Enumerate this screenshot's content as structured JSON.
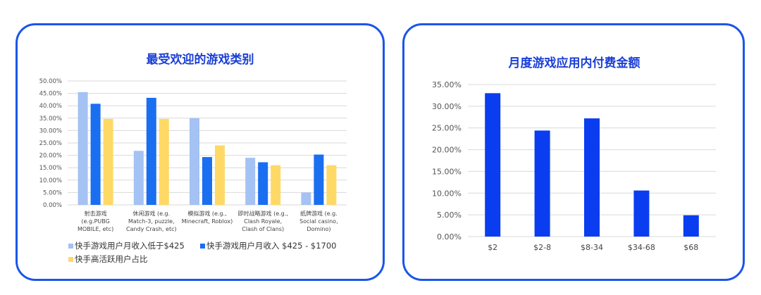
{
  "colors": {
    "card_border": "#1a56e8",
    "title": "#1a3fd6",
    "grid": "#d9d9d9",
    "series_light": "#a4c2f4",
    "series_dark": "#1a6ef0",
    "series_yellow": "#ffd966",
    "single_bar": "#0a3df0"
  },
  "chart_data": [
    {
      "type": "bar",
      "title": "最受欢迎的游戏类别",
      "categories": [
        [
          "射击游戏",
          "(e.g.PUBG",
          "MOBILE, etc)"
        ],
        [
          "休闲游戏 (e.g.",
          "Match-3, puzzle,",
          "Candy Crash, etc)"
        ],
        [
          "模拟游戏 (e.g.,",
          "Minecraft, Roblox)"
        ],
        [
          "即时战略游戏 (e.g.,",
          "Clash Royale,",
          "Clash of Clans)"
        ],
        [
          "纸牌游戏 (e.g.",
          "Social casino,",
          "Domino)"
        ]
      ],
      "yticks": [
        "0.00%",
        "5.00%",
        "10.00%",
        "15.00%",
        "20.00%",
        "25.00%",
        "30.00%",
        "35.00%",
        "40.00%",
        "45.00%",
        "50.00%"
      ],
      "ylim": [
        0,
        50
      ],
      "grid": true,
      "legend_position": "bottom",
      "series": [
        {
          "name": "快手游戏用户月收入低于$425",
          "values": [
            45.5,
            21.8,
            35.0,
            19.0,
            5.0
          ]
        },
        {
          "name": "快手游戏用户月收入 $425 - $1700",
          "values": [
            40.8,
            43.2,
            19.3,
            17.2,
            20.3
          ]
        },
        {
          "name": "快手高活跃用户占比",
          "values": [
            34.7,
            34.7,
            24.0,
            16.0,
            16.0
          ]
        }
      ]
    },
    {
      "type": "bar",
      "title": "月度游戏应用内付费金额",
      "categories": [
        "$2",
        "$2-8",
        "$8-34",
        "$34-68",
        "$68"
      ],
      "yticks": [
        "0.00%",
        "5.00%",
        "10.00%",
        "15.00%",
        "20.00%",
        "25.00%",
        "30.00%",
        "35.00%"
      ],
      "ylim": [
        0,
        35
      ],
      "grid": true,
      "series": [
        {
          "values": [
            33.0,
            24.4,
            27.2,
            10.6,
            4.9
          ]
        }
      ]
    }
  ]
}
